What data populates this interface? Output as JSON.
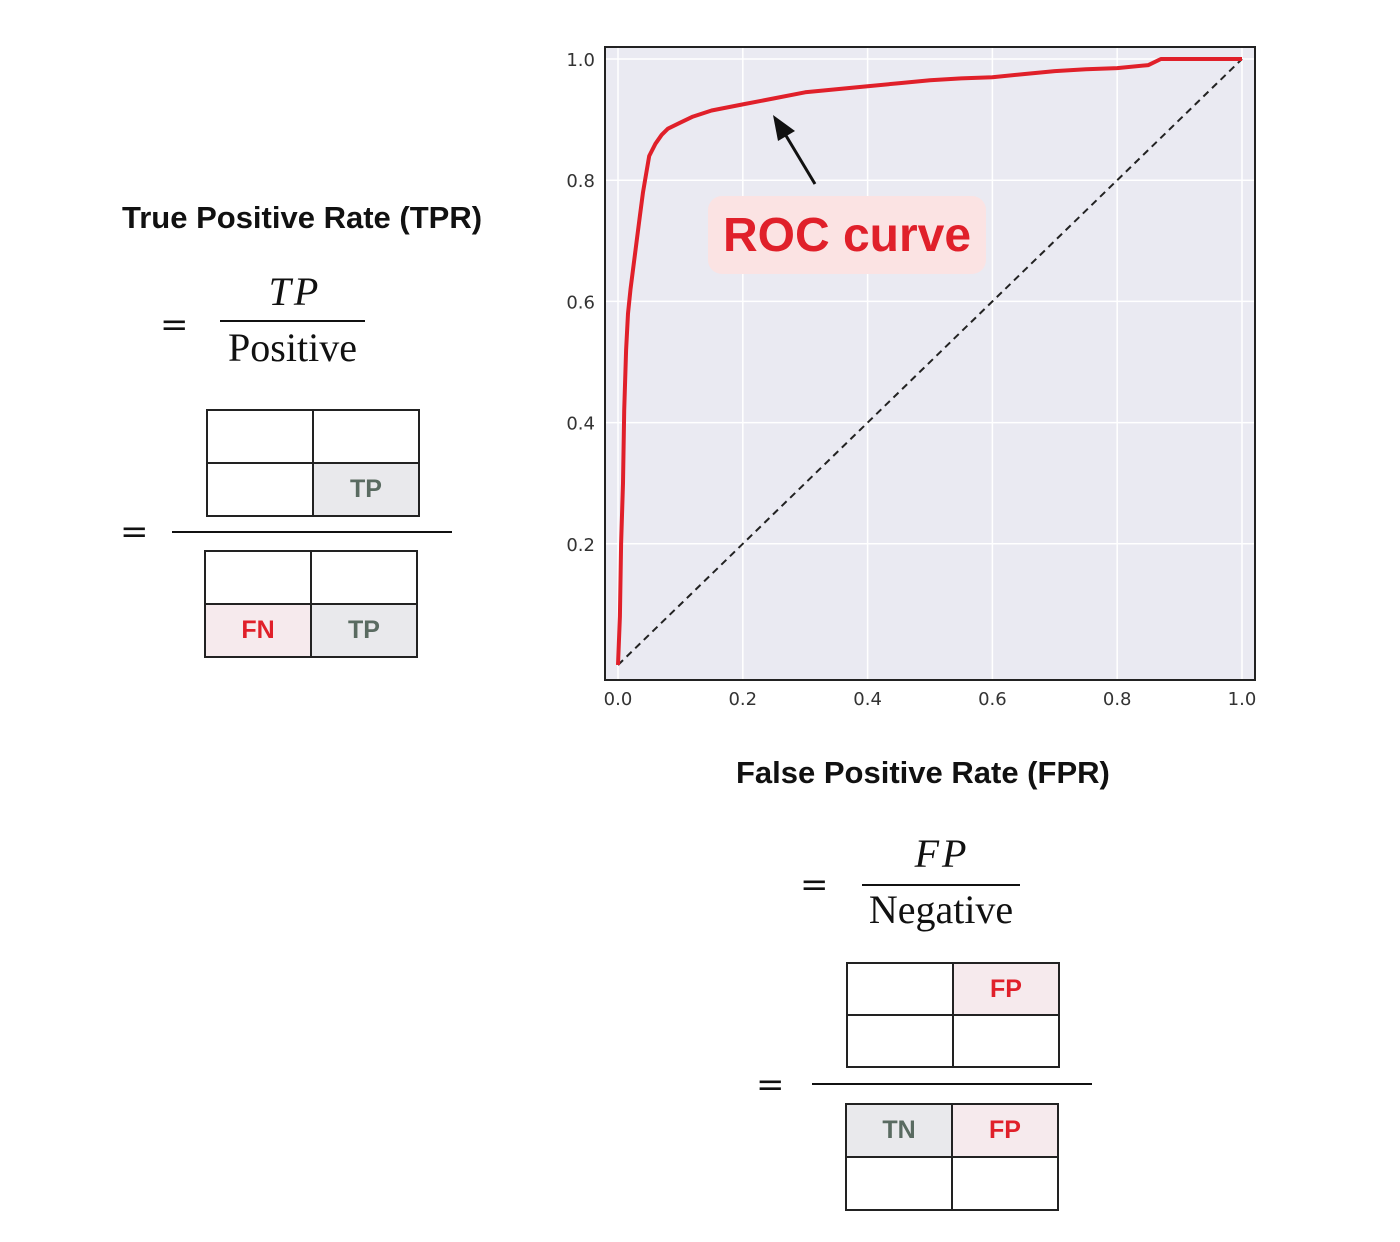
{
  "tpr": {
    "heading": "True Positive Rate (TPR)",
    "equals": "=",
    "numerator": "TP",
    "denominator": "Positive",
    "top_matrix": [
      [
        "",
        ""
      ],
      [
        "",
        "TP"
      ]
    ],
    "bottom_matrix": [
      [
        "",
        ""
      ],
      [
        "FN",
        "TP"
      ]
    ]
  },
  "fpr": {
    "heading": "False Positive Rate (FPR)",
    "equals": "=",
    "numerator": "FP",
    "denominator": "Negative",
    "top_matrix": [
      [
        "",
        "FP"
      ],
      [
        "",
        ""
      ]
    ],
    "bottom_matrix": [
      [
        "TN",
        "FP"
      ],
      [
        "",
        ""
      ]
    ]
  },
  "colors": {
    "roc_line": "#e0202a",
    "diagonal": "#222222",
    "plot_bg": "#eaeaf2",
    "highlight_gray": "#e9e9ec",
    "highlight_pink": "#f6eaed",
    "annotation_bg": "#fbe3e3"
  },
  "chart_data": {
    "type": "line",
    "title": "",
    "xlabel": "False Positive Rate (FPR)",
    "ylabel": "True Positive Rate (TPR)",
    "xlim": [
      0,
      1
    ],
    "ylim": [
      0,
      1
    ],
    "x_ticks": [
      "0.0",
      "0.2",
      "0.4",
      "0.6",
      "0.8",
      "1.0"
    ],
    "y_ticks": [
      "0.2",
      "0.4",
      "0.6",
      "0.8",
      "1.0"
    ],
    "grid": true,
    "annotation": "ROC curve",
    "series": [
      {
        "x": [
          0.0,
          0.003,
          0.005,
          0.008,
          0.01,
          0.013,
          0.016,
          0.02,
          0.025,
          0.03,
          0.035,
          0.04,
          0.045,
          0.05,
          0.06,
          0.07,
          0.08,
          0.1,
          0.12,
          0.15,
          0.2,
          0.25,
          0.3,
          0.35,
          0.4,
          0.45,
          0.5,
          0.55,
          0.6,
          0.65,
          0.7,
          0.75,
          0.8,
          0.85,
          0.87,
          0.9,
          0.95,
          1.0
        ],
        "y": [
          0.0,
          0.08,
          0.2,
          0.3,
          0.42,
          0.52,
          0.58,
          0.62,
          0.66,
          0.7,
          0.74,
          0.78,
          0.81,
          0.84,
          0.86,
          0.875,
          0.885,
          0.895,
          0.905,
          0.915,
          0.925,
          0.935,
          0.945,
          0.95,
          0.955,
          0.96,
          0.965,
          0.968,
          0.97,
          0.975,
          0.98,
          0.983,
          0.985,
          0.99,
          1.0,
          1.0,
          1.0,
          1.0
        ]
      },
      {
        "x": [
          0,
          1
        ],
        "y": [
          0,
          1
        ]
      }
    ]
  }
}
